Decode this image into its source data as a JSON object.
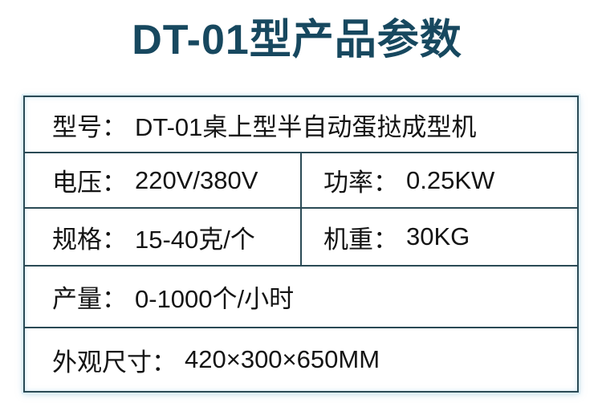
{
  "title": "DT-01型产品参数",
  "colors": {
    "title_text": "#17485f",
    "table_border": "#2a4a55",
    "table_glow": "#ddeef7",
    "cell_text": "#141414",
    "background": "#ffffff"
  },
  "table": {
    "rows": [
      {
        "cells": [
          {
            "label": "型号：",
            "value": "DT-01桌上型半自动蛋挞成型机"
          }
        ]
      },
      {
        "cells": [
          {
            "label": "电压：",
            "value": "220V/380V"
          },
          {
            "label": "功率：",
            "value": "0.25KW"
          }
        ]
      },
      {
        "cells": [
          {
            "label": "规格：",
            "value": "15-40克/个"
          },
          {
            "label": "机重：",
            "value": "30KG"
          }
        ]
      },
      {
        "cells": [
          {
            "label": "产量：",
            "value": "0-1000个/小时"
          }
        ]
      },
      {
        "cells": [
          {
            "label": "外观尺寸：",
            "value": "420×300×650MM"
          }
        ]
      }
    ]
  }
}
